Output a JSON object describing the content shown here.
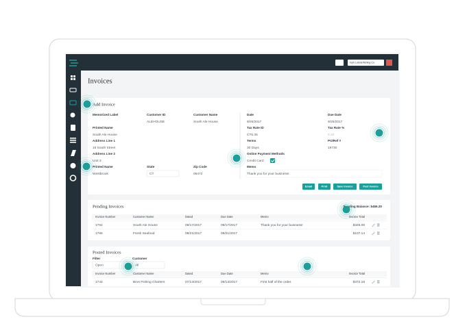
{
  "top_bar": {
    "company": "Inph Lobsterfishing Co."
  },
  "page_title": "Invoices",
  "add_invoice": {
    "title": "Add Invoice",
    "fields": {
      "memorized_label": {
        "label": "Memorized Label"
      },
      "customer_id": {
        "label": "Customer ID",
        "value": "ALEHOUSE"
      },
      "customer_name": {
        "label": "Customer Name",
        "value": "South Ale House"
      },
      "date": {
        "label": "Date",
        "value": "9/25/2017"
      },
      "due_date": {
        "label": "Due Date",
        "value": "9/25/2017"
      },
      "printed_name": {
        "label": "Printed Name",
        "value": "South Ale House"
      },
      "tax_rate_id": {
        "label": "Tax Rate ID",
        "value": "CT6.35"
      },
      "tax_rate": {
        "label": "Tax Rate %",
        "value": "6.35"
      },
      "address_1": {
        "label": "Address Line 1",
        "value": "16 South Street"
      },
      "terms": {
        "label": "Terms",
        "value": "30 Days"
      },
      "po_ref": {
        "label": "PO/Ref #",
        "value": "19730"
      },
      "address_2": {
        "label": "Address Line 2",
        "value": "Unit 3"
      },
      "payment_methods": {
        "label": "Online Payment Methods",
        "value": "Credit Card"
      },
      "city": {
        "label": "Printed Name",
        "value": "Westbrook"
      },
      "state": {
        "label": "State",
        "value": "CT"
      },
      "zip": {
        "label": "Zip Code",
        "value": "06472"
      },
      "memo": {
        "label": "Memo",
        "value": "Thank you for your business!"
      }
    },
    "buttons": [
      "Email",
      "Print",
      "Save Invoice",
      "Post Invoice"
    ]
  },
  "pending": {
    "title": "Pending Invoices",
    "balance": "Pending Balance: $456.20",
    "columns": [
      "Invoice Number",
      "Customer Name",
      "Dated",
      "Due Date",
      "Memo",
      "Invoice Total"
    ],
    "rows": [
      {
        "number": "1764",
        "customer": "South Ale House",
        "dated": "08/17/2017",
        "due": "09/17/2017",
        "memo": "Thank you for your business!",
        "total": "$349.06"
      },
      {
        "number": "1765",
        "customer": "Fresh Seafood",
        "dated": "08/21/2017",
        "due": "09/21/2017",
        "total": "$107.14"
      }
    ]
  },
  "posted": {
    "title": "Posted Invoices",
    "filter_label": "Filter",
    "filter": "Open",
    "customer_label": "Customer",
    "customer": "All",
    "columns": [
      "Invoice Number",
      "Customer Name",
      "Dated",
      "Due Date",
      "Memo",
      "Invoice Total"
    ],
    "rows": [
      {
        "number": "1742",
        "customer": "Bros Fishing Charters",
        "dated": "07/13/2017",
        "due": "08/13/2017",
        "memo": "First half of the order.",
        "total": "$372.18"
      }
    ]
  }
}
